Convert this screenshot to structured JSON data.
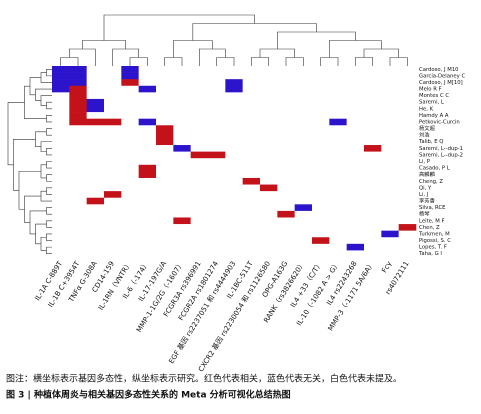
{
  "chart_data": {
    "type": "heatmap",
    "rows": [
      "Cardoso, J M10",
      "Garcia-Delaney C",
      "Cardoso, J M[10]",
      "Melo R F",
      "Montes C C",
      "Saremi, L",
      "He, K",
      "Hamdy A A",
      "Petkovic-Curcin",
      "杨文超",
      "刘浩",
      "Talib, E Q",
      "Saremi, L--dup-1",
      "Saremi, L--dup-2",
      "Li, P",
      "Casado, P L",
      "高麟麟",
      "Cheng, Z",
      "Qi, Y",
      "Li, J",
      "李芳香",
      "Silva, RCE",
      "杨琴",
      "Leite, M F",
      "Chen, Z",
      "Turkmen, M",
      "Pigossi, S. C",
      "Lopes, T. F",
      "Taha, G I"
    ],
    "columns": [
      "IL-1A C-889T",
      "IL-1B C+3954T",
      "TNFα G-308A",
      "CD14-159",
      "IL-1RN（VNTR）",
      "IL-6（-174）",
      "IL-17-197G/A",
      "MMP-1-1G/2G（-1607）",
      "FCGR3A rs396991",
      "FCGR2A rs1801274",
      "EGF 基因 rs2237051 和 rs4444903",
      "IL-1BC-511T",
      "CXCR2 基因 rs2230054 和 rs1126580",
      "OPG-A163G",
      "RANK（rs3826620）",
      "IL4 +33（C/T）",
      "IL-10（-1082 A > G）",
      "IL4 rs2243268",
      "MMP-3（-1171 5A/6A）",
      "Fcγ",
      "rs4072111"
    ],
    "values": [
      [
        -1,
        -1,
        0,
        0,
        -1,
        0,
        0,
        0,
        0,
        0,
        0,
        0,
        0,
        0,
        0,
        0,
        0,
        0,
        0,
        0,
        0
      ],
      [
        -1,
        -1,
        0,
        0,
        -1,
        0,
        0,
        0,
        0,
        0,
        0,
        0,
        0,
        0,
        0,
        0,
        0,
        0,
        0,
        0,
        0
      ],
      [
        -1,
        -1,
        0,
        0,
        1,
        0,
        0,
        0,
        0,
        0,
        -1,
        0,
        0,
        0,
        0,
        0,
        0,
        0,
        0,
        0,
        0
      ],
      [
        -1,
        1,
        0,
        0,
        0,
        -1,
        0,
        0,
        0,
        0,
        -1,
        0,
        0,
        0,
        0,
        0,
        0,
        0,
        0,
        0,
        0
      ],
      [
        0,
        1,
        0,
        0,
        0,
        0,
        0,
        0,
        0,
        0,
        0,
        0,
        0,
        0,
        0,
        0,
        0,
        0,
        0,
        0,
        0
      ],
      [
        0,
        1,
        -1,
        0,
        0,
        0,
        0,
        0,
        0,
        0,
        0,
        0,
        0,
        0,
        0,
        0,
        0,
        0,
        0,
        0,
        0
      ],
      [
        0,
        1,
        -1,
        0,
        0,
        0,
        0,
        0,
        0,
        0,
        0,
        0,
        0,
        0,
        0,
        0,
        0,
        0,
        0,
        0,
        0
      ],
      [
        0,
        1,
        0,
        0,
        0,
        0,
        0,
        0,
        0,
        0,
        0,
        0,
        0,
        0,
        0,
        0,
        0,
        0,
        0,
        0,
        0
      ],
      [
        0,
        1,
        1,
        1,
        0,
        -1,
        0,
        0,
        0,
        0,
        0,
        0,
        0,
        0,
        0,
        0,
        -1,
        0,
        0,
        0,
        0
      ],
      [
        0,
        0,
        0,
        0,
        0,
        0,
        1,
        0,
        0,
        0,
        0,
        0,
        0,
        0,
        0,
        0,
        0,
        0,
        0,
        0,
        0
      ],
      [
        0,
        0,
        0,
        0,
        0,
        0,
        1,
        0,
        0,
        0,
        0,
        0,
        0,
        0,
        0,
        0,
        0,
        0,
        0,
        0,
        0
      ],
      [
        0,
        0,
        0,
        0,
        0,
        0,
        1,
        0,
        0,
        0,
        0,
        0,
        0,
        0,
        0,
        0,
        0,
        0,
        0,
        0,
        0
      ],
      [
        0,
        0,
        0,
        0,
        0,
        0,
        0,
        -1,
        0,
        0,
        0,
        0,
        0,
        0,
        0,
        0,
        0,
        0,
        1,
        0,
        0
      ],
      [
        0,
        0,
        0,
        0,
        0,
        0,
        0,
        0,
        1,
        1,
        0,
        0,
        0,
        0,
        0,
        0,
        0,
        0,
        0,
        0,
        0
      ],
      [
        0,
        0,
        0,
        0,
        0,
        0,
        0,
        0,
        0,
        0,
        0,
        0,
        0,
        0,
        0,
        0,
        0,
        0,
        0,
        0,
        0
      ],
      [
        0,
        0,
        0,
        0,
        0,
        1,
        0,
        0,
        0,
        0,
        0,
        0,
        0,
        0,
        0,
        0,
        0,
        0,
        0,
        0,
        0
      ],
      [
        0,
        0,
        0,
        0,
        0,
        1,
        0,
        0,
        0,
        0,
        0,
        0,
        0,
        0,
        0,
        0,
        0,
        0,
        0,
        0,
        0
      ],
      [
        0,
        0,
        0,
        0,
        0,
        0,
        0,
        0,
        0,
        0,
        0,
        1,
        0,
        0,
        0,
        0,
        0,
        0,
        0,
        0,
        0
      ],
      [
        0,
        0,
        0,
        0,
        0,
        0,
        0,
        0,
        0,
        0,
        0,
        0,
        1,
        0,
        0,
        0,
        0,
        0,
        0,
        0,
        0
      ],
      [
        0,
        0,
        0,
        1,
        0,
        0,
        0,
        0,
        0,
        0,
        0,
        0,
        0,
        0,
        0,
        0,
        0,
        0,
        0,
        0,
        0
      ],
      [
        0,
        0,
        1,
        0,
        0,
        0,
        0,
        0,
        0,
        0,
        0,
        0,
        0,
        0,
        0,
        0,
        0,
        0,
        0,
        0,
        0
      ],
      [
        0,
        0,
        0,
        0,
        0,
        0,
        0,
        0,
        0,
        0,
        0,
        0,
        0,
        0,
        -1,
        0,
        0,
        0,
        0,
        0,
        0
      ],
      [
        0,
        0,
        0,
        0,
        0,
        0,
        0,
        0,
        0,
        0,
        0,
        0,
        0,
        1,
        0,
        0,
        0,
        0,
        0,
        0,
        0
      ],
      [
        0,
        0,
        0,
        0,
        0,
        0,
        0,
        1,
        0,
        0,
        0,
        0,
        0,
        0,
        0,
        0,
        0,
        0,
        0,
        0,
        0
      ],
      [
        0,
        0,
        0,
        0,
        0,
        0,
        0,
        0,
        0,
        0,
        0,
        0,
        0,
        0,
        0,
        0,
        0,
        0,
        0,
        0,
        1
      ],
      [
        0,
        0,
        0,
        0,
        0,
        0,
        0,
        0,
        0,
        0,
        0,
        0,
        0,
        0,
        0,
        0,
        0,
        0,
        0,
        -1,
        0
      ],
      [
        0,
        0,
        0,
        0,
        0,
        0,
        0,
        0,
        0,
        0,
        0,
        0,
        0,
        0,
        0,
        1,
        0,
        0,
        0,
        0,
        0
      ],
      [
        0,
        0,
        0,
        0,
        0,
        0,
        0,
        0,
        0,
        0,
        0,
        0,
        0,
        0,
        0,
        0,
        0,
        -1,
        0,
        0,
        0
      ],
      [
        0,
        0,
        0,
        0,
        0,
        0,
        0,
        0,
        0,
        0,
        0,
        0,
        0,
        0,
        0,
        0,
        0,
        0,
        0,
        0,
        0
      ]
    ],
    "zlim": [
      -1,
      1
    ],
    "colors": [
      "#2c14cc",
      "#ffffff",
      "#c4121a"
    ],
    "caption": {
      "note": "图注：横坐标表示基因多态性，纵坐标表示研究。红色代表相关，蓝色代表无关，白色代表未提及。",
      "title": "图 3 | 种植体周炎与相关基因多态性关系的 Meta 分析可视化总结热图"
    }
  }
}
